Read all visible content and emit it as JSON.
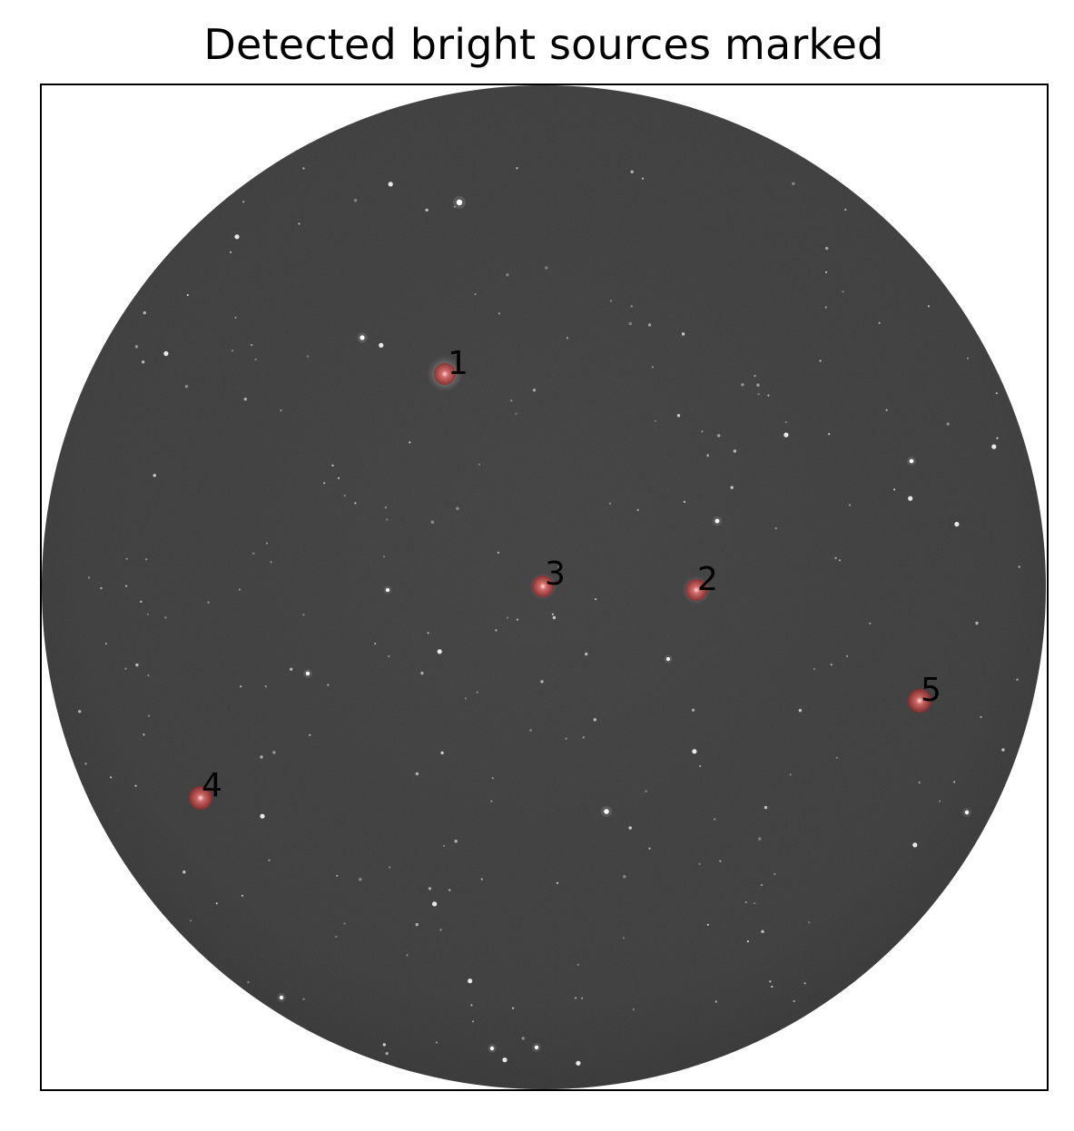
{
  "title": "Detected bright sources marked",
  "colors": {
    "background": "#ffffff",
    "sky": "#393939",
    "marker": "#c0392b",
    "frame": "#000000"
  },
  "sources": [
    {
      "label": "1"
    },
    {
      "label": "2"
    },
    {
      "label": "3"
    },
    {
      "label": "4"
    },
    {
      "label": "5"
    }
  ]
}
